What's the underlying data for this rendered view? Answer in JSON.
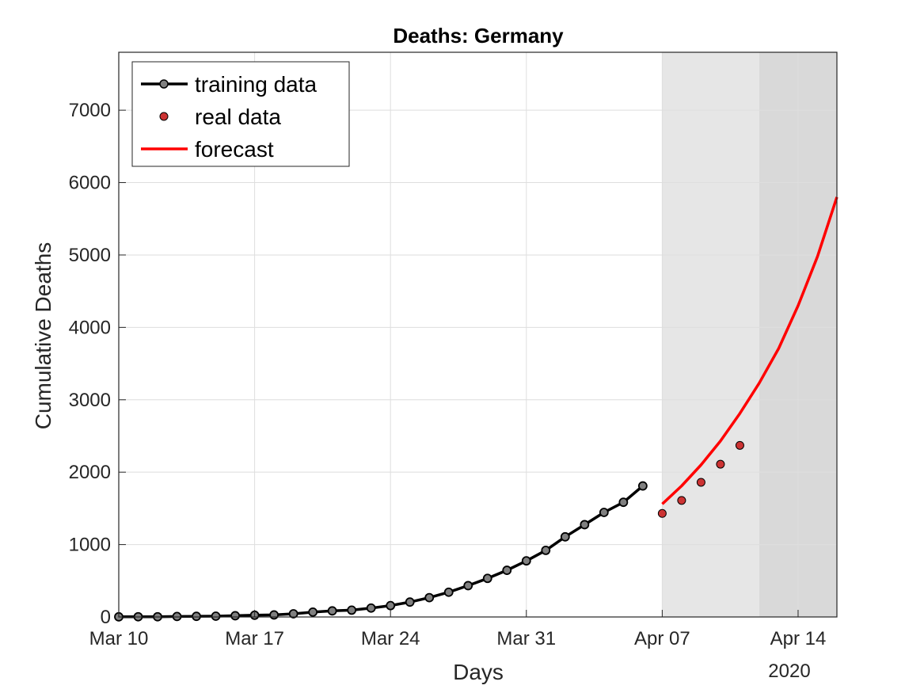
{
  "chart_data": {
    "type": "line",
    "title": "Deaths: Germany",
    "xlabel": "Days",
    "ylabel": "Cumulative Deaths",
    "year_label": "2020",
    "x_tick_labels": [
      "Mar 10",
      "Mar 17",
      "Mar 24",
      "Mar 31",
      "Apr 07",
      "Apr 14"
    ],
    "xlim": [
      "2020-03-10",
      "2020-04-16"
    ],
    "ylim": [
      0,
      7800
    ],
    "y_ticks": [
      0,
      1000,
      2000,
      3000,
      4000,
      5000,
      6000,
      7000
    ],
    "grid": true,
    "legend_position": "top-left",
    "shaded_regions": [
      {
        "from": "2020-04-07",
        "to": "2020-04-12",
        "color": "#e6e6e6"
      },
      {
        "from": "2020-04-12",
        "to": "2020-04-16",
        "color": "#d9d9d9"
      }
    ],
    "series": [
      {
        "name": "training data",
        "style": "line-markers",
        "color": "#000000",
        "marker_color": "#808080",
        "x": [
          "2020-03-10",
          "2020-03-11",
          "2020-03-12",
          "2020-03-13",
          "2020-03-14",
          "2020-03-15",
          "2020-03-16",
          "2020-03-17",
          "2020-03-18",
          "2020-03-19",
          "2020-03-20",
          "2020-03-21",
          "2020-03-22",
          "2020-03-23",
          "2020-03-24",
          "2020-03-25",
          "2020-03-26",
          "2020-03-27",
          "2020-03-28",
          "2020-03-29",
          "2020-03-30",
          "2020-03-31",
          "2020-04-01",
          "2020-04-02",
          "2020-04-03",
          "2020-04-04",
          "2020-04-05",
          "2020-04-06"
        ],
        "y": [
          2,
          3,
          3,
          7,
          9,
          11,
          17,
          24,
          28,
          44,
          67,
          84,
          94,
          123,
          157,
          206,
          267,
          342,
          433,
          533,
          645,
          775,
          920,
          1107,
          1275,
          1444,
          1584,
          1810
        ]
      },
      {
        "name": "real data",
        "style": "markers",
        "color": "#cc3333",
        "x": [
          "2020-04-07",
          "2020-04-08",
          "2020-04-09",
          "2020-04-10",
          "2020-04-11"
        ],
        "y": [
          1430,
          1610,
          1860,
          2110,
          2370
        ]
      },
      {
        "name": "forecast",
        "style": "line",
        "color": "#ff0000",
        "x": [
          "2020-04-07",
          "2020-04-08",
          "2020-04-09",
          "2020-04-10",
          "2020-04-11",
          "2020-04-12",
          "2020-04-13",
          "2020-04-14",
          "2020-04-15",
          "2020-04-16"
        ],
        "y": [
          1560,
          1810,
          2100,
          2430,
          2810,
          3230,
          3710,
          4300,
          4980,
          5800
        ]
      }
    ]
  }
}
